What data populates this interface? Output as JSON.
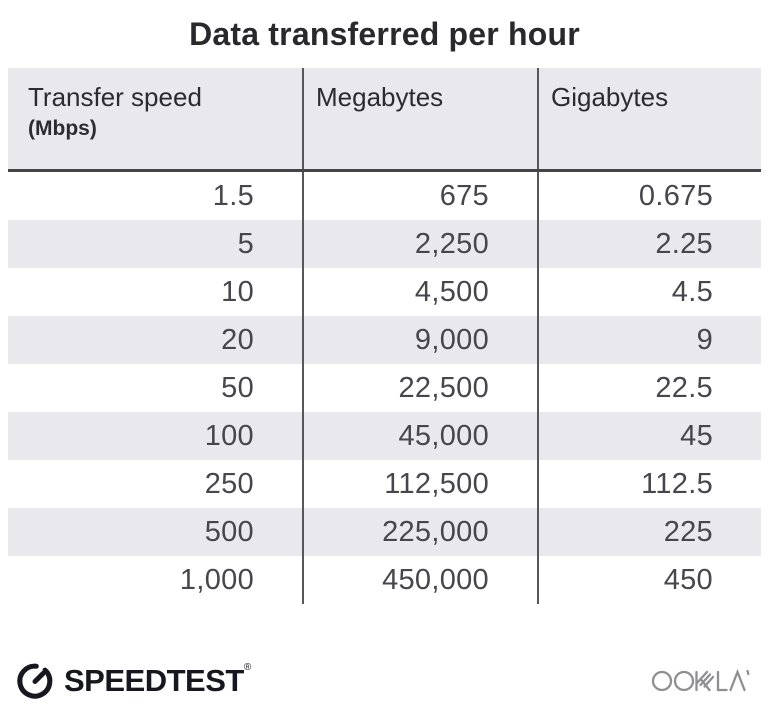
{
  "title": "Data transferred per hour",
  "colors": {
    "header_bg": "#e9e8ec",
    "row_stripe": "#e9e8ec",
    "divider": "#56565b",
    "header_rule": "#454549",
    "title_text": "#28282d",
    "cell_text": "#46464c",
    "speedtest_logo": "#17171f",
    "ookla_logo": "#8f8f92"
  },
  "table": {
    "headers": [
      {
        "label": "Transfer speed",
        "sublabel": "(Mbps)"
      },
      {
        "label": "Megabytes"
      },
      {
        "label": "Gigabytes"
      }
    ],
    "rows": [
      [
        "1.5",
        "675",
        "0.675"
      ],
      [
        "5",
        "2,250",
        "2.25"
      ],
      [
        "10",
        "4,500",
        "4.5"
      ],
      [
        "20",
        "9,000",
        "9"
      ],
      [
        "50",
        "22,500",
        "22.5"
      ],
      [
        "100",
        "45,000",
        "45"
      ],
      [
        "250",
        "112,500",
        "112.5"
      ],
      [
        "500",
        "225,000",
        "225"
      ],
      [
        "1,000",
        "450,000",
        "450"
      ]
    ]
  },
  "footer": {
    "speedtest_label": "SPEEDTEST",
    "registered_mark": "®",
    "ookla_label": "OOKLA"
  },
  "chart_data": {
    "type": "table",
    "title": "Data transferred per hour",
    "columns": [
      "Transfer speed (Mbps)",
      "Megabytes",
      "Gigabytes"
    ],
    "rows": [
      [
        1.5,
        675,
        0.675
      ],
      [
        5,
        2250,
        2.25
      ],
      [
        10,
        4500,
        4.5
      ],
      [
        20,
        9000,
        9
      ],
      [
        50,
        22500,
        22.5
      ],
      [
        100,
        45000,
        45
      ],
      [
        250,
        112500,
        112.5
      ],
      [
        500,
        225000,
        225
      ],
      [
        1000,
        450000,
        450
      ]
    ]
  }
}
